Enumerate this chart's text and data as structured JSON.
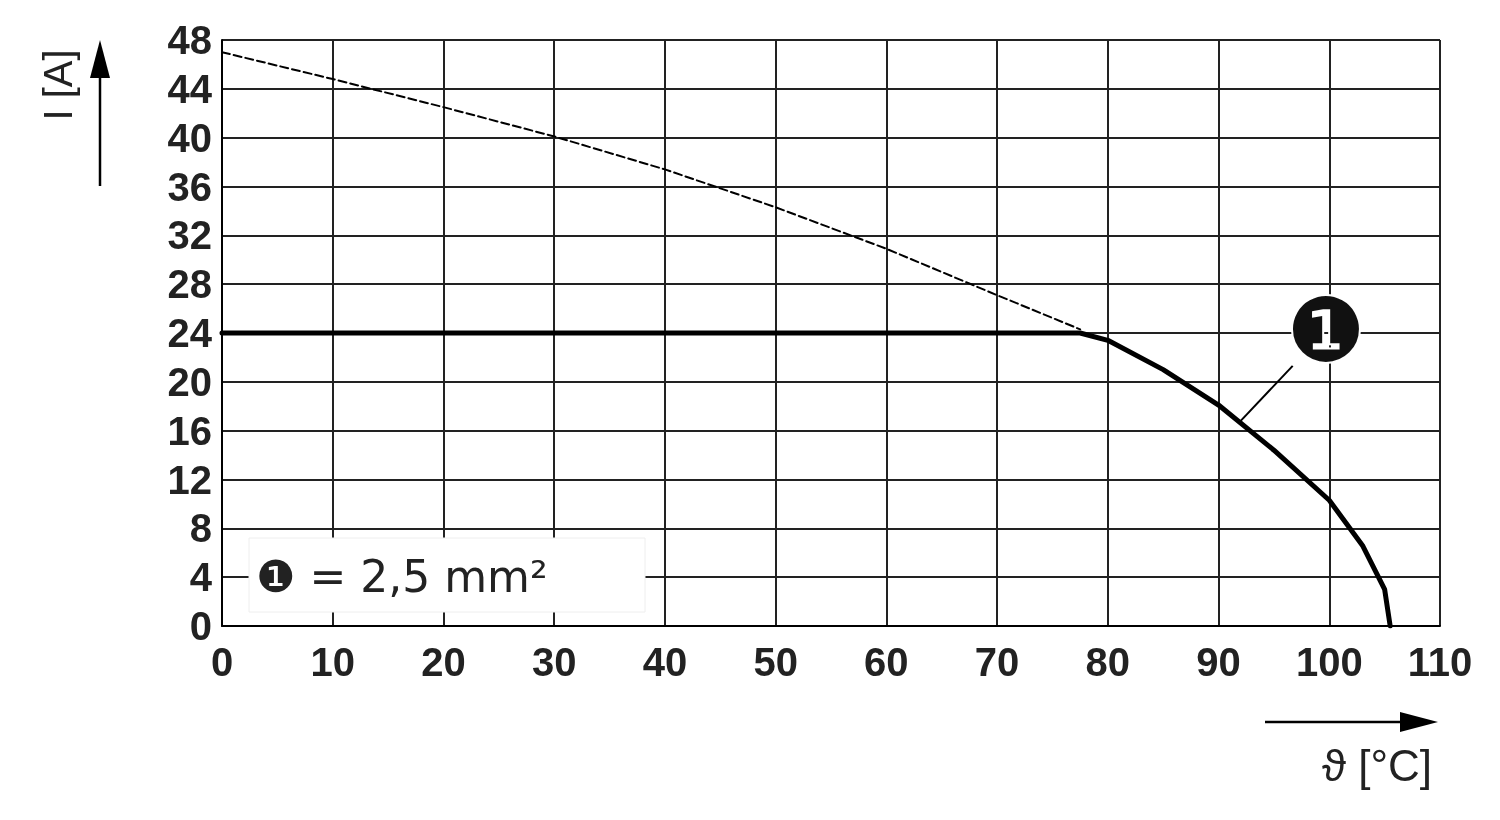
{
  "chart_data": {
    "type": "line",
    "xlabel": "ϑ [°C]",
    "ylabel": "I [A]",
    "xlim": [
      0,
      110
    ],
    "xticks": [
      0,
      10,
      20,
      30,
      40,
      50,
      60,
      70,
      80,
      90,
      100,
      110
    ],
    "ylim": [
      0,
      48
    ],
    "yticks": [
      0,
      4,
      8,
      12,
      16,
      20,
      24,
      28,
      32,
      36,
      40,
      44,
      48
    ],
    "grid": true,
    "marker": "none",
    "series": [
      {
        "color": "#000000",
        "line_style": "dashed",
        "x": [
          0,
          10,
          20,
          30,
          40,
          50,
          60,
          70,
          77.5
        ],
        "values": [
          47,
          44.8,
          42.5,
          40.1,
          37.4,
          34.3,
          30.9,
          27.1,
          24.3
        ]
      },
      {
        "color": "#000000",
        "line_style": "solid",
        "x": [
          0,
          77.5,
          80,
          85,
          90,
          95,
          100,
          103,
          105,
          105.5
        ],
        "values": [
          24,
          24,
          23.4,
          21,
          18.1,
          14.4,
          10.3,
          6.6,
          3,
          0
        ]
      }
    ],
    "annotations": [
      {
        "text": "❶",
        "x": 92,
        "y": 16.8
      },
      "❶ = 2,5 mm²"
    ]
  }
}
